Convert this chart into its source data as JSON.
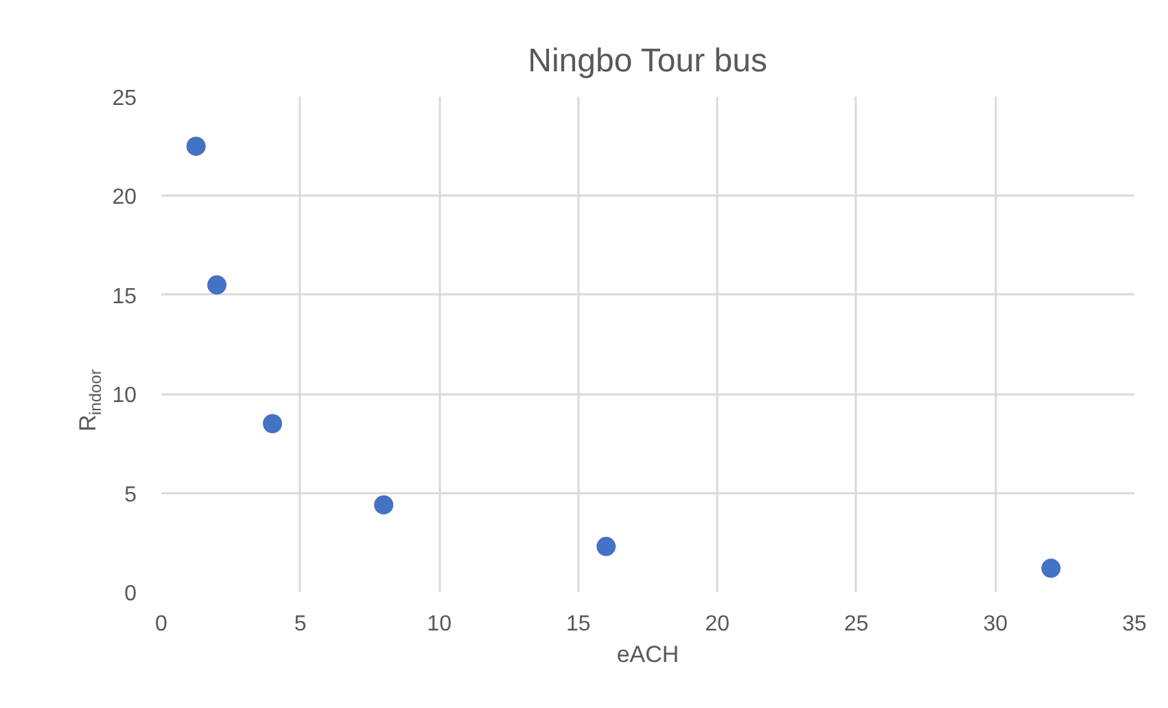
{
  "chart_data": {
    "type": "scatter",
    "title": "Ningbo Tour bus",
    "xlabel": "eACH",
    "ylabel": "R$_{indoor}$",
    "x": [
      1.25,
      2,
      4,
      8,
      16,
      32
    ],
    "series": [
      {
        "color": "#4472c4",
        "values": [
          22.5,
          15.5,
          8.5,
          4.4,
          2.3,
          1.2
        ]
      }
    ],
    "xlim": [
      0,
      35
    ],
    "xticks": [
      0,
      5,
      10,
      15,
      20,
      25,
      30,
      35
    ],
    "ylim": [
      0,
      25
    ],
    "yticks": [
      0,
      5,
      10,
      15,
      20,
      25
    ],
    "grid": true,
    "marker": "circle"
  }
}
